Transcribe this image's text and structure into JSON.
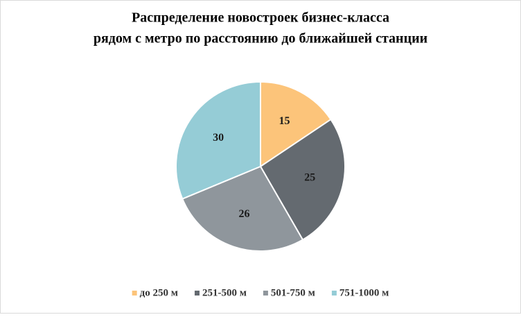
{
  "chart_data": {
    "type": "pie",
    "title": [
      "Распределение новостроек бизнес-класса",
      "рядом с метро по расстоянию до ближайшей станции"
    ],
    "categories": [
      "до 250 м",
      "251-500 м",
      "501-750 м",
      "751-1000 м"
    ],
    "values": [
      15,
      25,
      26,
      30
    ],
    "colors": [
      "#fcc47a",
      "#646a70",
      "#8f969c",
      "#95ccd6"
    ],
    "legend": "bottom"
  }
}
